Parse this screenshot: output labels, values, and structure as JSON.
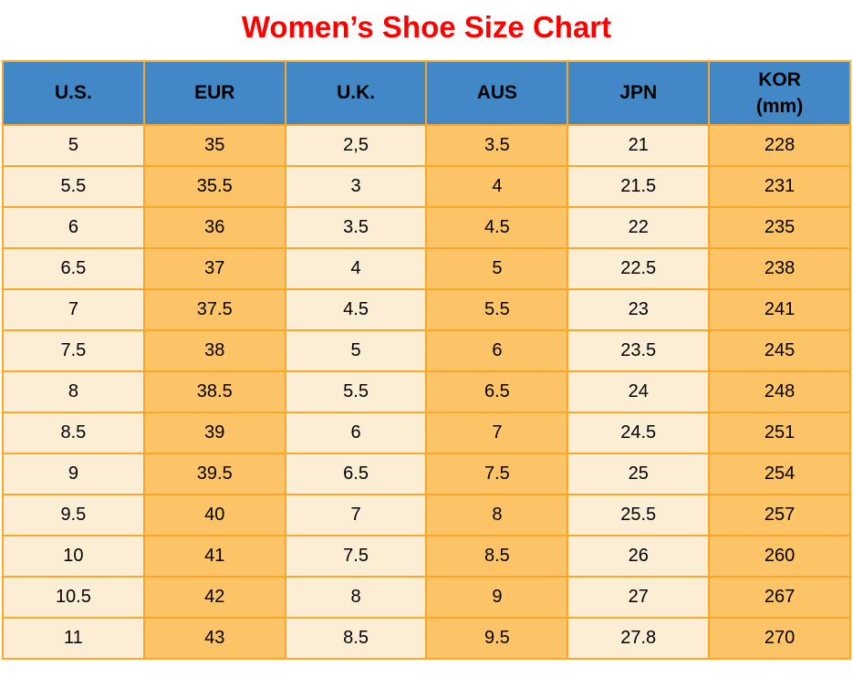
{
  "colors": {
    "title_red": "#FF0000",
    "header_blue": "#4288C7",
    "cell_cream": "#FCEDD5",
    "cell_orange": "#FCC367",
    "border_orange": "#F9A62B",
    "cell_text": "#000000"
  },
  "chart_data": {
    "type": "table",
    "title": "Women’s Shoe Size Chart",
    "columns": [
      "U.S.",
      "EUR",
      "U.K.",
      "AUS",
      "JPN",
      "KOR\n(mm)"
    ],
    "rows": [
      [
        "5",
        "35",
        "2,5",
        "3.5",
        "21",
        "228"
      ],
      [
        "5.5",
        "35.5",
        "3",
        "4",
        "21.5",
        "231"
      ],
      [
        "6",
        "36",
        "3.5",
        "4.5",
        "22",
        "235"
      ],
      [
        "6.5",
        "37",
        "4",
        "5",
        "22.5",
        "238"
      ],
      [
        "7",
        "37.5",
        "4.5",
        "5.5",
        "23",
        "241"
      ],
      [
        "7.5",
        "38",
        "5",
        "6",
        "23.5",
        "245"
      ],
      [
        "8",
        "38.5",
        "5.5",
        "6.5",
        "24",
        "248"
      ],
      [
        "8.5",
        "39",
        "6",
        "7",
        "24.5",
        "251"
      ],
      [
        "9",
        "39.5",
        "6.5",
        "7.5",
        "25",
        "254"
      ],
      [
        "9.5",
        "40",
        "7",
        "8",
        "25.5",
        "257"
      ],
      [
        "10",
        "41",
        "7.5",
        "8.5",
        "26",
        "260"
      ],
      [
        "10.5",
        "42",
        "8",
        "9",
        "27",
        "267"
      ],
      [
        "11",
        "43",
        "8.5",
        "9.5",
        "27.8",
        "270"
      ]
    ]
  }
}
